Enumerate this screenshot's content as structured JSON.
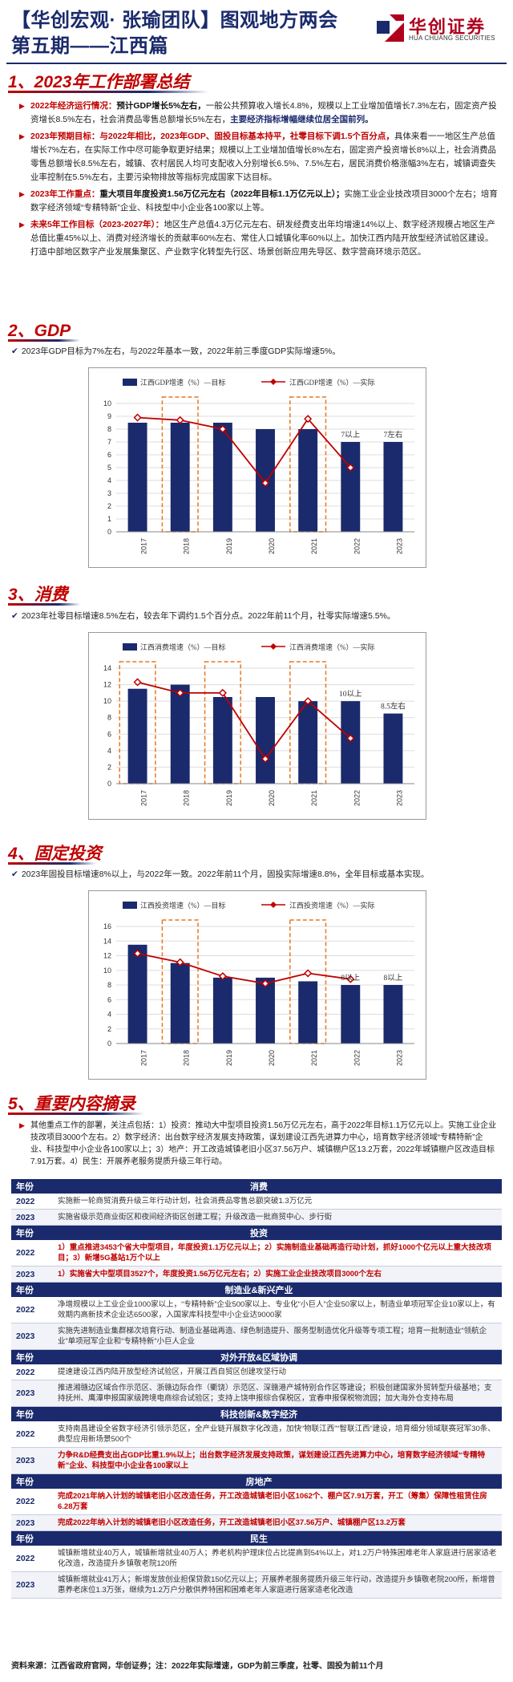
{
  "header": {
    "title_line1": "【华创宏观· 张瑜团队】图观地方两会",
    "title_line2": "第五期——江西篇",
    "logo_text": "华创证券",
    "logo_sub": "HUA CHUANG SECURITIES"
  },
  "section1": {
    "title": "1、2023年工作部署总结",
    "items": [
      {
        "label": "2022年经济运行情况：",
        "highlight": "预计GDP增长5%左右，",
        "body": "一般公共预算收入增长4.8%，规模以上工业增加值增长7.3%左右，固定资产投资增长8.5%左右，社会消费品零售总额增长5%左右，",
        "tail": "主要经济指标增幅继续位居全国前列。"
      },
      {
        "label": "2023年预期目标：与2022年相比，2023年GDP、固投目标基本持平，社零目标下调1.5个百分点，",
        "highlight": "",
        "body": "具体来看一一地区生产总值增长7%左右，在实际工作中尽可能争取更好结果；规模以上工业增加值增长8%左右，固定资产投资增长8%以上，社会消费品零售总额增长8.5%左右，城镇、农村居民人均可支配收入分别增长6.5%、7.5%左右，居民消费价格涨幅3%左右，城镇调查失业率控制在5.5%左右，主要污染物排放等指标完成国家下达目标。",
        "tail": ""
      },
      {
        "label": "2023年工作重点：",
        "highlight": "重大项目年度投资1.56万亿元左右（2022年目标1.1万亿元以上）；",
        "body": "实施工业企业技改项目3000个左右；培育数字经济领域“专精特新”企业、科技型中小企业各100家以上等。",
        "tail": ""
      },
      {
        "label": "未来5年工作目标（2023-2027年）：",
        "highlight": "",
        "body": "地区生产总值4.3万亿元左右、研发经费支出年均增速14%以上、数字经济规模占地区生产总值比重45%以上、消费对经济增长的贡献率60%左右、常住人口城镇化率60%以上。加快江西内陆开放型经济试验区建设。打造中部地区数字产业发展集聚区、产业数字化转型先行区、场景创新应用先导区、数字营商环境示范区。",
        "tail": ""
      }
    ]
  },
  "section2": {
    "title": "2、GDP",
    "note": "2023年GDP目标为7%左右，与2022年基本一致，2022年前三季度GDP实际增速5%。"
  },
  "section3": {
    "title": "3、消费",
    "note": "2023年社零目标增速8.5%左右，较去年下调约1.5个百分点。2022年前11个月，社零实际增速5.5%。"
  },
  "section4": {
    "title": "4、固定投资",
    "note": "2023年固投目标增速8%以上，与2022年一致。2022年前11个月，固投实际增速8.8%，全年目标或基本实现。"
  },
  "section5": {
    "title": "5、重要内容摘录",
    "intro": "其他重点工作的部署，关注点包括：1）投资：推动大中型项目投资1.56万亿元左右，高于2022年目标1.1万亿元以上。实施工业企业技改项目3000个左右。2）数字经济：出台数字经济发展支持政策，谋划建设江西先进算力中心，培育数字经济领域“专精特新”企业、科技型中小企业各100家以上；3）地产：开工改造城镇老旧小区37.56万户、城镇棚户区13.2万套，2022年城镇棚户区改造目标7.91万套。4）民生：开展养老服务提质升级三年行动。",
    "year_header": "年份",
    "groups": [
      {
        "name": "消费",
        "rows": [
          {
            "year": "2022",
            "text": "实施新一轮商贸消费升级三年行动计划，社会消费品零售总额突破1.3万亿元"
          },
          {
            "year": "2023",
            "text": "实施省级示范商业街区和夜间经济街区创建工程；升级改造一批商贸中心、步行街"
          }
        ]
      },
      {
        "name": "投资",
        "rows": [
          {
            "year": "2022",
            "text": "1）重点推进3453个省大中型项目，年度投资1.1万亿元以上；2）实施制造业基础再造行动计划，抓好1000个亿元以上重大技改项目；3）新增5G基站1万个以上"
          },
          {
            "year": "2023",
            "text": "1）实施省大中型项目3527个，年度投资1.56万亿元左右；2）实施工业企业技改项目3000个左右"
          }
        ]
      },
      {
        "name": "制造业&新兴产业",
        "rows": [
          {
            "year": "2022",
            "text": "净增规模以上工业企业1000家以上，“专精特新”企业500家以上、专业化“小巨人”企业50家以上，制造业单项冠军企业10家以上，有效期内高新技术企业达6500家，入国家库科技型中小企业达9000家"
          },
          {
            "year": "2023",
            "text": "实施先进制造业集群梯次培育行动、制造业基础再造、绿色制造提升、服务型制造优化升级等专项工程；培育一批制造业“领航企业”单项冠军企业和“专精特新”小巨人企业"
          }
        ]
      },
      {
        "name": "对外开放&区域协调",
        "rows": [
          {
            "year": "2022",
            "text": "提速建设江西内陆开放型经济试验区，开展江西自贸区创建攻坚行动"
          },
          {
            "year": "2023",
            "text": "推进湘赣边区域合作示范区、浙赣边际合作（衢饶）示范区、深赣港产城特别合作区等建设；积极创建国家外贸转型升级基地；支持抚州、鹰潭申报国家级跨境电商综合试验区；支持上饶申报综合保税区，宜春申报保税物流园；加大海外仓支持布局"
          }
        ]
      },
      {
        "name": "科技创新&数字经济",
        "rows": [
          {
            "year": "2022",
            "text": "支持南昌建设全省数字经济引领示范区，全产业链开展数字化改造，加快“物联江西”“智联江西”建设，培育细分领域联赛冠军30条、典型应用新场景500个"
          },
          {
            "year": "2023",
            "text": "力争R&D经费支出占GDP比重1.9%以上；出台数字经济发展支持政策，谋划建设江西先进算力中心，培育数字经济领域“专精特新”企业、科技型中小企业各100家以上"
          }
        ]
      },
      {
        "name": "房地产",
        "rows": [
          {
            "year": "2022",
            "text": "完成2021年纳入计划的城镇老旧小区改造任务，开工改造城镇老旧小区1062个、棚户区7.91万套，开工（筹集）保障性租赁住房6.28万套"
          },
          {
            "year": "2023",
            "text": "完成2022年纳入计划的城镇老旧小区改造任务，开工改造城镇老旧小区37.56万户、城镇棚户区13.2万套"
          }
        ]
      },
      {
        "name": "民生",
        "rows": [
          {
            "year": "2022",
            "text": "城镇新增就业40万人，城镇新增就业40万人；养老机构护理床位占比提高到54%以上，对1.2万户特殊困难老年人家庭进行居家适老化改造，改造提升乡镇敬老院120所"
          },
          {
            "year": "2023",
            "text": "城镇新增就业41万人；新增发放创业担保贷款150亿元以上；开展养老服务提质升级三年行动，改造提升乡镇敬老院200所，新增普惠养老床位1.3万张，继续为1.2万户分散供养特困和困难老年人家庭进行居家适老化改造"
          }
        ]
      }
    ]
  },
  "footer": "资料来源：江西省政府官网，华创证券；注：2022年实际增速，GDP为前三季度，社零、固投为前11个月",
  "chart_data": [
    {
      "type": "bar",
      "categories": [
        "2017",
        "2018",
        "2019",
        "2020",
        "2021",
        "2022",
        "2023"
      ],
      "series": [
        {
          "name": "江西GDP增速（%）—目标",
          "values": [
            8.5,
            8.5,
            8.5,
            8,
            8,
            7,
            7
          ]
        },
        {
          "name": "江西GDP增速（%）—实际",
          "values": [
            8.9,
            8.7,
            8.0,
            3.8,
            8.8,
            5.0,
            null
          ]
        }
      ],
      "ylim": [
        0,
        10
      ],
      "yticks": [
        0,
        1,
        2,
        3,
        4,
        5,
        6,
        7,
        8,
        9,
        10
      ],
      "annotations": [
        {
          "category": "2022",
          "text": "7以上"
        },
        {
          "category": "2023",
          "text": "7左右"
        }
      ],
      "highlight_years": [
        "2018",
        "2021"
      ]
    },
    {
      "type": "bar",
      "categories": [
        "2017",
        "2018",
        "2019",
        "2020",
        "2021",
        "2022",
        "2023"
      ],
      "series": [
        {
          "name": "江西消费增速（%）—目标",
          "values": [
            11.5,
            12,
            10.5,
            10.5,
            10,
            10,
            8.5
          ]
        },
        {
          "name": "江西消费增速（%）—实际",
          "values": [
            12.3,
            11.0,
            11.0,
            3.0,
            10.0,
            5.5,
            null
          ]
        }
      ],
      "ylim": [
        0,
        14
      ],
      "yticks": [
        0,
        2,
        4,
        6,
        8,
        10,
        12,
        14
      ],
      "annotations": [
        {
          "category": "2022",
          "text": "10以上"
        },
        {
          "category": "2023",
          "text": "8.5左右"
        }
      ],
      "highlight_years": [
        "2017",
        "2019",
        "2021"
      ]
    },
    {
      "type": "bar",
      "categories": [
        "2017",
        "2018",
        "2019",
        "2020",
        "2021",
        "2022",
        "2023"
      ],
      "series": [
        {
          "name": "江西投资增速（%）—目标",
          "values": [
            13.5,
            11,
            9,
            9,
            8.5,
            8,
            8
          ]
        },
        {
          "name": "江西投资增速（%）—实际",
          "values": [
            12.3,
            11.1,
            9.2,
            8.2,
            9.6,
            8.8,
            null
          ]
        }
      ],
      "ylim": [
        0,
        16
      ],
      "yticks": [
        0,
        2,
        4,
        6,
        8,
        10,
        12,
        14,
        16
      ],
      "annotations": [
        {
          "category": "2022",
          "text": "8以上"
        },
        {
          "category": "2023",
          "text": "8以上"
        }
      ],
      "highlight_years": [
        "2018",
        "2021"
      ]
    }
  ]
}
